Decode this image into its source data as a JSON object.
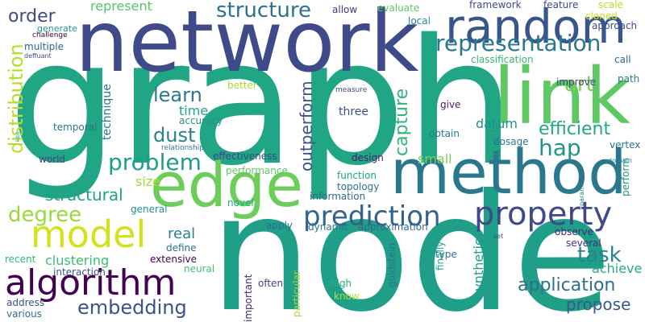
{
  "words": [
    {
      "text": "graph",
      "color": "#21a685"
    },
    {
      "text": "node",
      "color": "#1f9f88"
    },
    {
      "text": "network",
      "color": "#3e4a89"
    },
    {
      "text": "method",
      "color": "#2a788e"
    },
    {
      "text": "link",
      "color": "#5ec962"
    },
    {
      "text": "edge",
      "color": "#6ccd5a"
    },
    {
      "text": "random",
      "color": "#39568c"
    },
    {
      "text": "property",
      "color": "#3e4a89"
    },
    {
      "text": "algorithm",
      "color": "#440154"
    },
    {
      "text": "model",
      "color": "#d2e21b"
    },
    {
      "text": "prediction",
      "color": "#33638d"
    },
    {
      "text": "representation",
      "color": "#2a788e"
    },
    {
      "text": "structure",
      "color": "#2c728e"
    },
    {
      "text": "embedding",
      "color": "#3b528b"
    },
    {
      "text": "application",
      "color": "#2d708e"
    },
    {
      "text": "problem",
      "color": "#1f9e89"
    },
    {
      "text": "degree",
      "color": "#9bd93c"
    },
    {
      "text": "distribution",
      "color": "#b5de2b"
    },
    {
      "text": "art",
      "color": "#7ad151"
    },
    {
      "text": "hap",
      "color": "#1f948c"
    },
    {
      "text": "task",
      "color": "#25858e"
    },
    {
      "text": "order",
      "color": "#3e4a89"
    },
    {
      "text": "learn",
      "color": "#2a788e"
    },
    {
      "text": "dust",
      "color": "#26828e"
    },
    {
      "text": "capture",
      "color": "#31b57b"
    },
    {
      "text": "structural",
      "color": "#1fa088"
    },
    {
      "text": "efficient",
      "color": "#22a785"
    },
    {
      "text": "propose",
      "color": "#38598c"
    },
    {
      "text": "outperform",
      "color": "#3b528b"
    },
    {
      "text": "clustering",
      "color": "#3dbc74"
    },
    {
      "text": "achieve",
      "color": "#25ab82"
    },
    {
      "text": "real",
      "color": "#25848e"
    },
    {
      "text": "size",
      "color": "#a0da39"
    },
    {
      "text": "time",
      "color": "#1fa187"
    },
    {
      "text": "technique",
      "color": "#2a788e"
    },
    {
      "text": "synthetic",
      "color": "#1fa088"
    },
    {
      "text": "small",
      "color": "#7ad151"
    },
    {
      "text": "represent",
      "color": "#54c568"
    },
    {
      "text": "feature",
      "color": "#3e4a89"
    },
    {
      "text": "framework",
      "color": "#3e4a89"
    },
    {
      "text": "evaluate",
      "color": "#5ec962"
    },
    {
      "text": "allow",
      "color": "#453882"
    },
    {
      "text": "local",
      "color": "#24868e"
    },
    {
      "text": "scale",
      "color": "#b5de2b"
    },
    {
      "text": "cloned",
      "color": "#d2e21b"
    },
    {
      "text": "approach",
      "color": "#3b528b"
    },
    {
      "text": "classification",
      "color": "#35b779"
    },
    {
      "text": "call",
      "color": "#31688e"
    },
    {
      "text": "path",
      "color": "#2a788e"
    },
    {
      "text": "improve",
      "color": "#414487"
    },
    {
      "text": "datum",
      "color": "#21918c"
    },
    {
      "text": "generate",
      "color": "#21918c"
    },
    {
      "text": "challenge",
      "color": "#440154"
    },
    {
      "text": "multiple",
      "color": "#33638d"
    },
    {
      "text": "deffuant",
      "color": "#3e4a89"
    },
    {
      "text": "better",
      "color": "#addc30"
    },
    {
      "text": "measure",
      "color": "#3e4a89"
    },
    {
      "text": "give",
      "color": "#481a6c"
    },
    {
      "text": "three",
      "color": "#3b528b"
    },
    {
      "text": "accuracy",
      "color": "#21918c"
    },
    {
      "text": "temporal",
      "color": "#2c728e"
    },
    {
      "text": "obtain",
      "color": "#2a788e"
    },
    {
      "text": "matrix",
      "color": "#1f9a8a"
    },
    {
      "text": "dosage",
      "color": "#2c728e"
    },
    {
      "text": "vertex",
      "color": "#2c728e"
    },
    {
      "text": "effectiveness",
      "color": "#404688"
    },
    {
      "text": "world",
      "color": "#414487"
    },
    {
      "text": "performance",
      "color": "#5ec962"
    },
    {
      "text": "relationship",
      "color": "#2a788e"
    },
    {
      "text": "kibs",
      "color": "#1f9a8a"
    },
    {
      "text": "design",
      "color": "#481a6c"
    },
    {
      "text": "function",
      "color": "#20a386"
    },
    {
      "text": "topology",
      "color": "#2c728e"
    },
    {
      "text": "information",
      "color": "#31688e"
    },
    {
      "text": "general",
      "color": "#21918c"
    },
    {
      "text": "novel",
      "color": "#25ac82"
    },
    {
      "text": "apply",
      "color": "#2e6f8e"
    },
    {
      "text": "dynamic",
      "color": "#2a788e"
    },
    {
      "text": "approximation",
      "color": "#31688e"
    },
    {
      "text": "define",
      "color": "#2c728e"
    },
    {
      "text": "extensive",
      "color": "#440154"
    },
    {
      "text": "interaction",
      "color": "#3b528b"
    },
    {
      "text": "neural",
      "color": "#46c06f"
    },
    {
      "text": "recent",
      "color": "#31b57b"
    },
    {
      "text": "goldstein",
      "color": "#2c728e"
    },
    {
      "text": "parameter",
      "color": "#2c728e"
    },
    {
      "text": "domain",
      "color": "#26828e"
    },
    {
      "text": "perform",
      "color": "#21918c"
    },
    {
      "text": "observe",
      "color": "#482878"
    },
    {
      "text": "several",
      "color": "#46327e"
    },
    {
      "text": "set",
      "color": "#3e4a89"
    },
    {
      "text": "finally",
      "color": "#20a386"
    },
    {
      "text": "type",
      "color": "#2c728e"
    },
    {
      "text": "high",
      "color": "#29af7f"
    },
    {
      "text": "know",
      "color": "#b5de2b"
    },
    {
      "text": "often",
      "color": "#414487"
    },
    {
      "text": "important",
      "color": "#482878"
    },
    {
      "text": "particular",
      "color": "#9fda3a"
    },
    {
      "text": "address",
      "color": "#3b528b"
    },
    {
      "text": "various",
      "color": "#2c728e"
    }
  ]
}
